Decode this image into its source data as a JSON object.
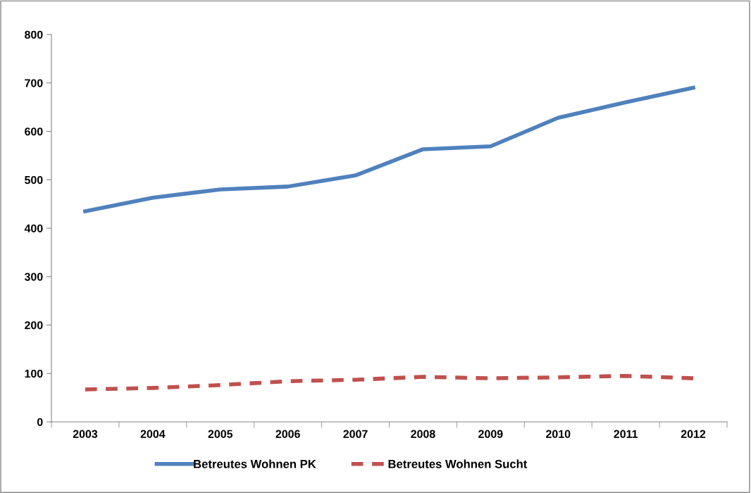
{
  "chart_data": {
    "type": "line",
    "categories": [
      "2003",
      "2004",
      "2005",
      "2006",
      "2007",
      "2008",
      "2009",
      "2010",
      "2011",
      "2012"
    ],
    "series": [
      {
        "name": "Betreutes Wohnen PK",
        "color": "#4f81bd",
        "line_style": "solid",
        "values": [
          435,
          463,
          480,
          486,
          509,
          563,
          569,
          628,
          660,
          690
        ]
      },
      {
        "name": "Betreutes Wohnen Sucht",
        "color": "#c0504d",
        "line_style": "dashed",
        "values": [
          67,
          70,
          76,
          84,
          87,
          93,
          90,
          92,
          95,
          90
        ]
      }
    ],
    "ylim": [
      0,
      800
    ],
    "yticks": [
      0,
      100,
      200,
      300,
      400,
      500,
      600,
      700,
      800
    ],
    "grid": false,
    "legend": "bottom",
    "marker": "none"
  }
}
